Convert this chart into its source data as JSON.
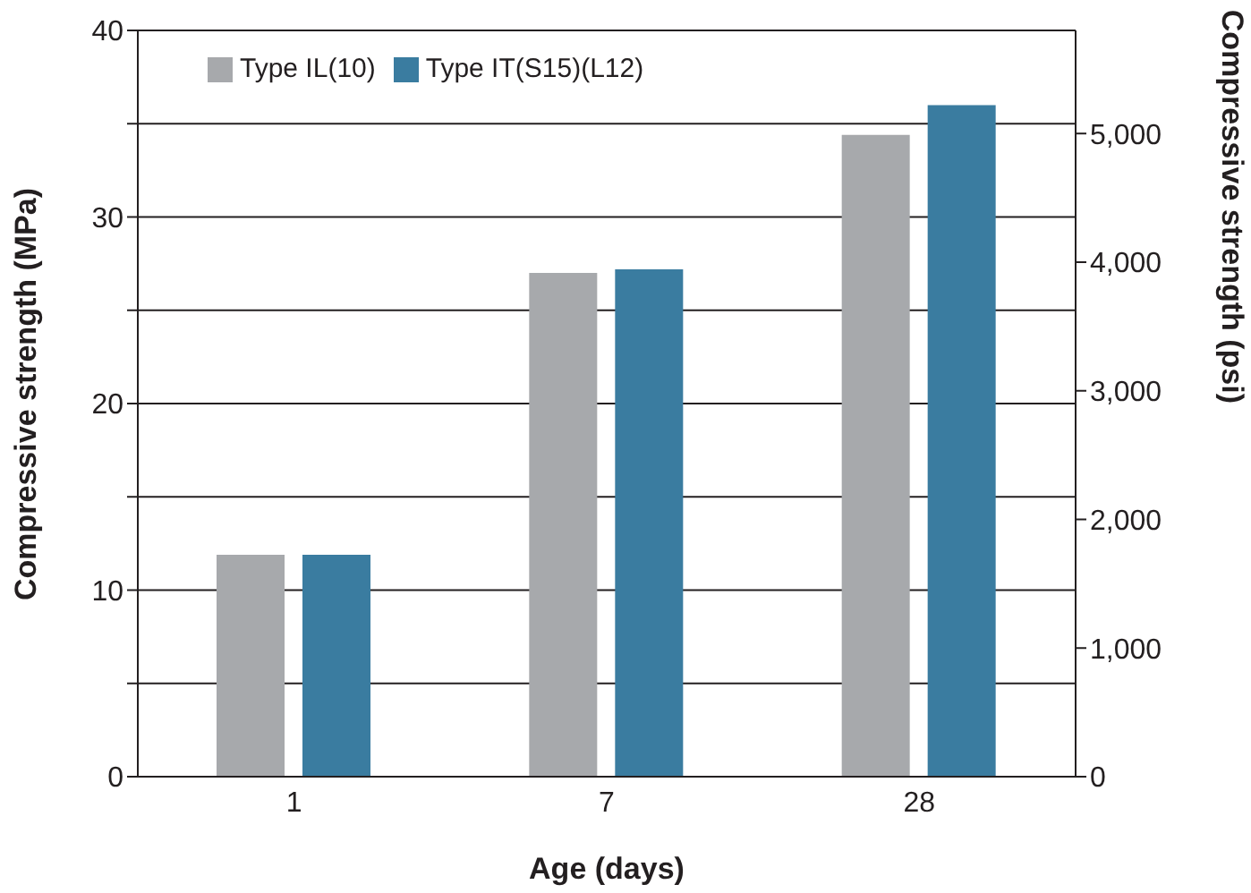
{
  "chart_data": {
    "type": "bar",
    "categories": [
      "1",
      "7",
      "28"
    ],
    "series": [
      {
        "name": "Type IL(10)",
        "color": "#a7a9ac",
        "values": [
          11.9,
          27.0,
          34.4
        ]
      },
      {
        "name": "Type IT(S15)(L12)",
        "color": "#3a7ca0",
        "values": [
          11.9,
          27.2,
          36.0
        ]
      }
    ],
    "xlabel": "Age (days)",
    "ylabel": "Compressive strength (MPa)",
    "y2label": "Compressive strength (psi)",
    "ylim": [
      0,
      40
    ],
    "yticks": [
      0,
      {
        "value": 5,
        "label": null
      },
      10,
      {
        "value": 15,
        "label": null
      },
      20,
      {
        "value": 25,
        "label": null
      },
      30,
      {
        "value": 35,
        "label": null
      },
      40
    ],
    "y2lim": [
      0,
      5801.5
    ],
    "y2ticks": [
      0,
      {
        "value": 1000,
        "label": "1,000"
      },
      {
        "value": 2000,
        "label": "2,000"
      },
      {
        "value": 3000,
        "label": "3,000"
      },
      {
        "value": 4000,
        "label": "4,000"
      },
      {
        "value": 5000,
        "label": "5,000"
      }
    ],
    "grid": "y",
    "legend": "top left"
  }
}
